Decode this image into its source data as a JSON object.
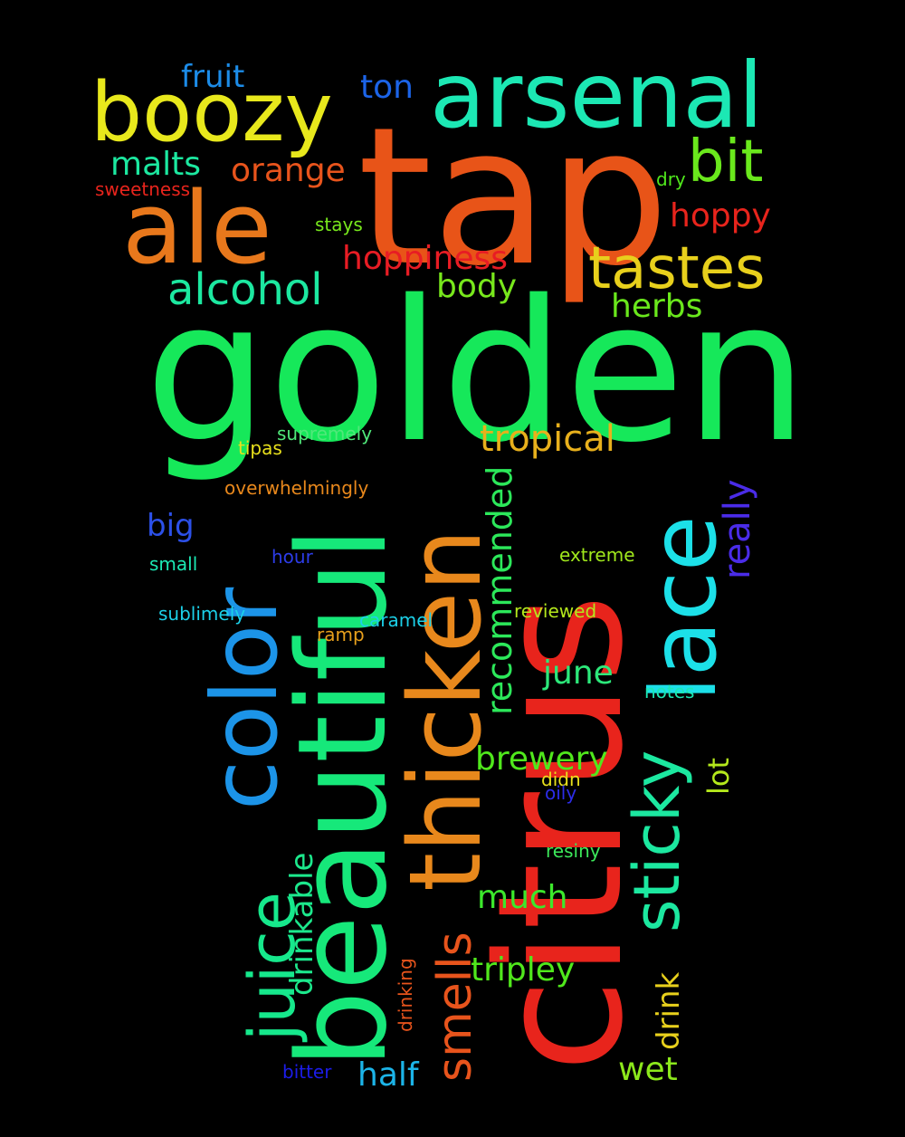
{
  "words": [
    {
      "text": "golden",
      "color": "#16e85a"
    },
    {
      "text": "tap",
      "color": "#e85418"
    },
    {
      "text": "citrus",
      "color": "#e8241c"
    },
    {
      "text": "beautiful",
      "color": "#16e87a"
    },
    {
      "text": "thicken",
      "color": "#e8881c"
    },
    {
      "text": "color",
      "color": "#1c94e8"
    },
    {
      "text": "arsenal",
      "color": "#1ce8b4"
    },
    {
      "text": "ale",
      "color": "#e8781c"
    },
    {
      "text": "boozy",
      "color": "#e8e81c"
    },
    {
      "text": "lace",
      "color": "#1ce0e8"
    },
    {
      "text": "sticky",
      "color": "#1ce8a0"
    },
    {
      "text": "juice",
      "color": "#16e88c"
    },
    {
      "text": "tastes",
      "color": "#e8d01c"
    },
    {
      "text": "bit",
      "color": "#6ae81c"
    },
    {
      "text": "alcohol",
      "color": "#1ce8a0"
    },
    {
      "text": "tropical",
      "color": "#e8b01c"
    },
    {
      "text": "smells",
      "color": "#e8541c"
    },
    {
      "text": "really",
      "color": "#4a2ce8"
    },
    {
      "text": "recommended",
      "color": "#2ce85a"
    },
    {
      "text": "brewery",
      "color": "#50e81c"
    },
    {
      "text": "drinkable",
      "color": "#1ce88c"
    },
    {
      "text": "hoppiness",
      "color": "#e81c24"
    },
    {
      "text": "orange",
      "color": "#e8541c"
    },
    {
      "text": "malts",
      "color": "#1ce8a0"
    },
    {
      "text": "hoppy",
      "color": "#e8241c"
    },
    {
      "text": "body",
      "color": "#78e81c"
    },
    {
      "text": "herbs",
      "color": "#6ae81c"
    },
    {
      "text": "fruit",
      "color": "#1c8ce8"
    },
    {
      "text": "ton",
      "color": "#1c64e8"
    },
    {
      "text": "big",
      "color": "#2c50e8"
    },
    {
      "text": "june",
      "color": "#2ce87a"
    },
    {
      "text": "much",
      "color": "#3ce82c"
    },
    {
      "text": "tripley",
      "color": "#50e81c"
    },
    {
      "text": "wet",
      "color": "#8ce81c"
    },
    {
      "text": "half",
      "color": "#1cb4e8"
    },
    {
      "text": "drink",
      "color": "#e8d01c"
    },
    {
      "text": "lot",
      "color": "#b4e81c"
    },
    {
      "text": "sweetness",
      "color": "#e8241c"
    },
    {
      "text": "stays",
      "color": "#78e81c"
    },
    {
      "text": "dry",
      "color": "#50e81c"
    },
    {
      "text": "supremely",
      "color": "#50e87a"
    },
    {
      "text": "tipas",
      "color": "#e8e01c"
    },
    {
      "text": "overwhelmingly",
      "color": "#e8881c"
    },
    {
      "text": "small",
      "color": "#1ce8b4"
    },
    {
      "text": "hour",
      "color": "#2c3ce8"
    },
    {
      "text": "extreme",
      "color": "#a0e81c"
    },
    {
      "text": "sublimely",
      "color": "#1cd0e8"
    },
    {
      "text": "caramel",
      "color": "#1cd0e8"
    },
    {
      "text": "reviewed",
      "color": "#b4e81c"
    },
    {
      "text": "ramp",
      "color": "#e8a01c"
    },
    {
      "text": "notes",
      "color": "#1ce8b4"
    },
    {
      "text": "didn",
      "color": "#e8e01c"
    },
    {
      "text": "oily",
      "color": "#2c2ce8"
    },
    {
      "text": "resiny",
      "color": "#3ce85a"
    },
    {
      "text": "drinking",
      "color": "#e8541c"
    },
    {
      "text": "bitter",
      "color": "#1c1ce8"
    }
  ]
}
